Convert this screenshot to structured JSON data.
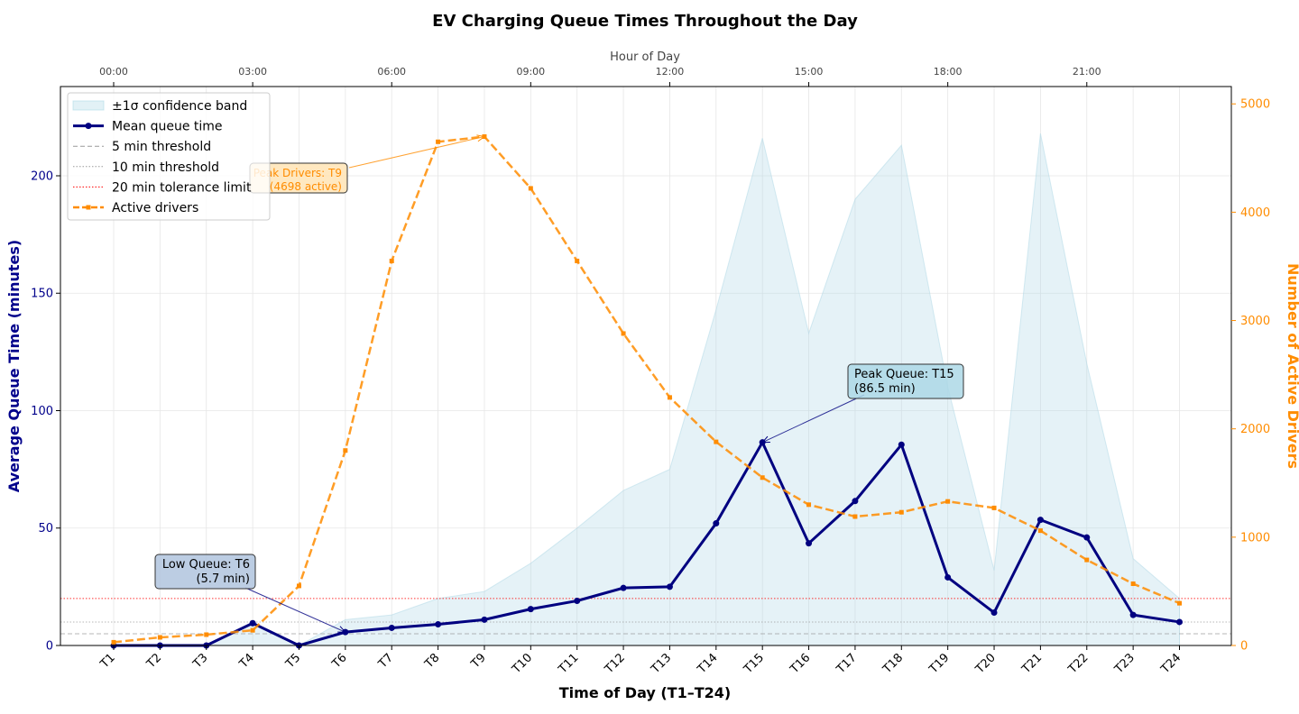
{
  "chart_data": {
    "type": "line",
    "title": "EV Charging Queue Times Throughout the Day",
    "xlabel": "Time of Day (T1–T24)",
    "ylabel_left": "Average Queue Time (minutes)",
    "ylabel_right": "Number of Active Drivers",
    "top_axis_label": "Hour of Day",
    "categories": [
      "T1",
      "T2",
      "T3",
      "T4",
      "T5",
      "T6",
      "T7",
      "T8",
      "T9",
      "T10",
      "T11",
      "T12",
      "T13",
      "T14",
      "T15",
      "T16",
      "T17",
      "T18",
      "T19",
      "T20",
      "T21",
      "T22",
      "T23",
      "T24"
    ],
    "top_ticks": [
      "00:00",
      "03:00",
      "06:00",
      "09:00",
      "12:00",
      "15:00",
      "18:00",
      "21:00"
    ],
    "ylim_left": [
      0,
      238
    ],
    "yticks_left": [
      0,
      50,
      100,
      150,
      200
    ],
    "ylim_right": [
      0,
      5160
    ],
    "yticks_right": [
      0,
      1000,
      2000,
      3000,
      4000,
      5000
    ],
    "grid": true,
    "legend_position": "top-left",
    "series": [
      {
        "name": "Mean queue time",
        "axis": "left",
        "color": "#000080",
        "values": [
          0,
          0,
          0,
          9.5,
          0,
          5.7,
          7.5,
          9,
          11,
          15.5,
          19,
          24.5,
          25,
          52,
          86.5,
          43.5,
          61.5,
          85.5,
          29,
          14,
          53.5,
          46,
          13,
          10
        ]
      },
      {
        "name": "Active drivers",
        "axis": "right",
        "color": "#ff8c00",
        "values": [
          30,
          75,
          100,
          140,
          550,
          1800,
          3550,
          4650,
          4698,
          4220,
          3550,
          2880,
          2290,
          1880,
          1550,
          1300,
          1190,
          1230,
          1330,
          1270,
          1060,
          790,
          570,
          390
        ]
      }
    ],
    "band": {
      "name": "±1σ confidence band",
      "color": "#add8e6",
      "upper": [
        0,
        0,
        0,
        9.5,
        0,
        11,
        13,
        20,
        23,
        35,
        50,
        66,
        75,
        143,
        216,
        133,
        190,
        213,
        110,
        32,
        218,
        120,
        37,
        20
      ],
      "lower": [
        0,
        0,
        0,
        0,
        0,
        0,
        0,
        0,
        0,
        0,
        0,
        0,
        0,
        0,
        0,
        0,
        0,
        0,
        0,
        0,
        0,
        0,
        0,
        0
      ]
    },
    "thresholds": [
      {
        "name": "5 min threshold",
        "value": 5,
        "color": "#999999",
        "style": "dashed"
      },
      {
        "name": "10 min threshold",
        "value": 10,
        "color": "#999999",
        "style": "dotted"
      },
      {
        "name": "20 min tolerance limit",
        "value": 20,
        "color": "#ff0000",
        "style": "dotted"
      }
    ],
    "annotations": [
      {
        "line1": "Peak Queue: T15",
        "line2": "(86.5 min)",
        "target_index": 14,
        "target_value": 86.5,
        "axis": "left",
        "box_color": "#add8e6",
        "text_color": "#000000"
      },
      {
        "line1": "Low Queue: T6",
        "line2": "(5.7 min)",
        "target_index": 5,
        "target_value": 5.7,
        "axis": "left",
        "box_color": "#b0c4de",
        "text_color": "#000000"
      },
      {
        "line1": "Peak Drivers: T9",
        "line2": "(4698 active)",
        "target_index": 8,
        "target_value": 4698,
        "axis": "right",
        "box_color": "#ffe4b5",
        "text_color": "#ff8c00"
      }
    ]
  }
}
